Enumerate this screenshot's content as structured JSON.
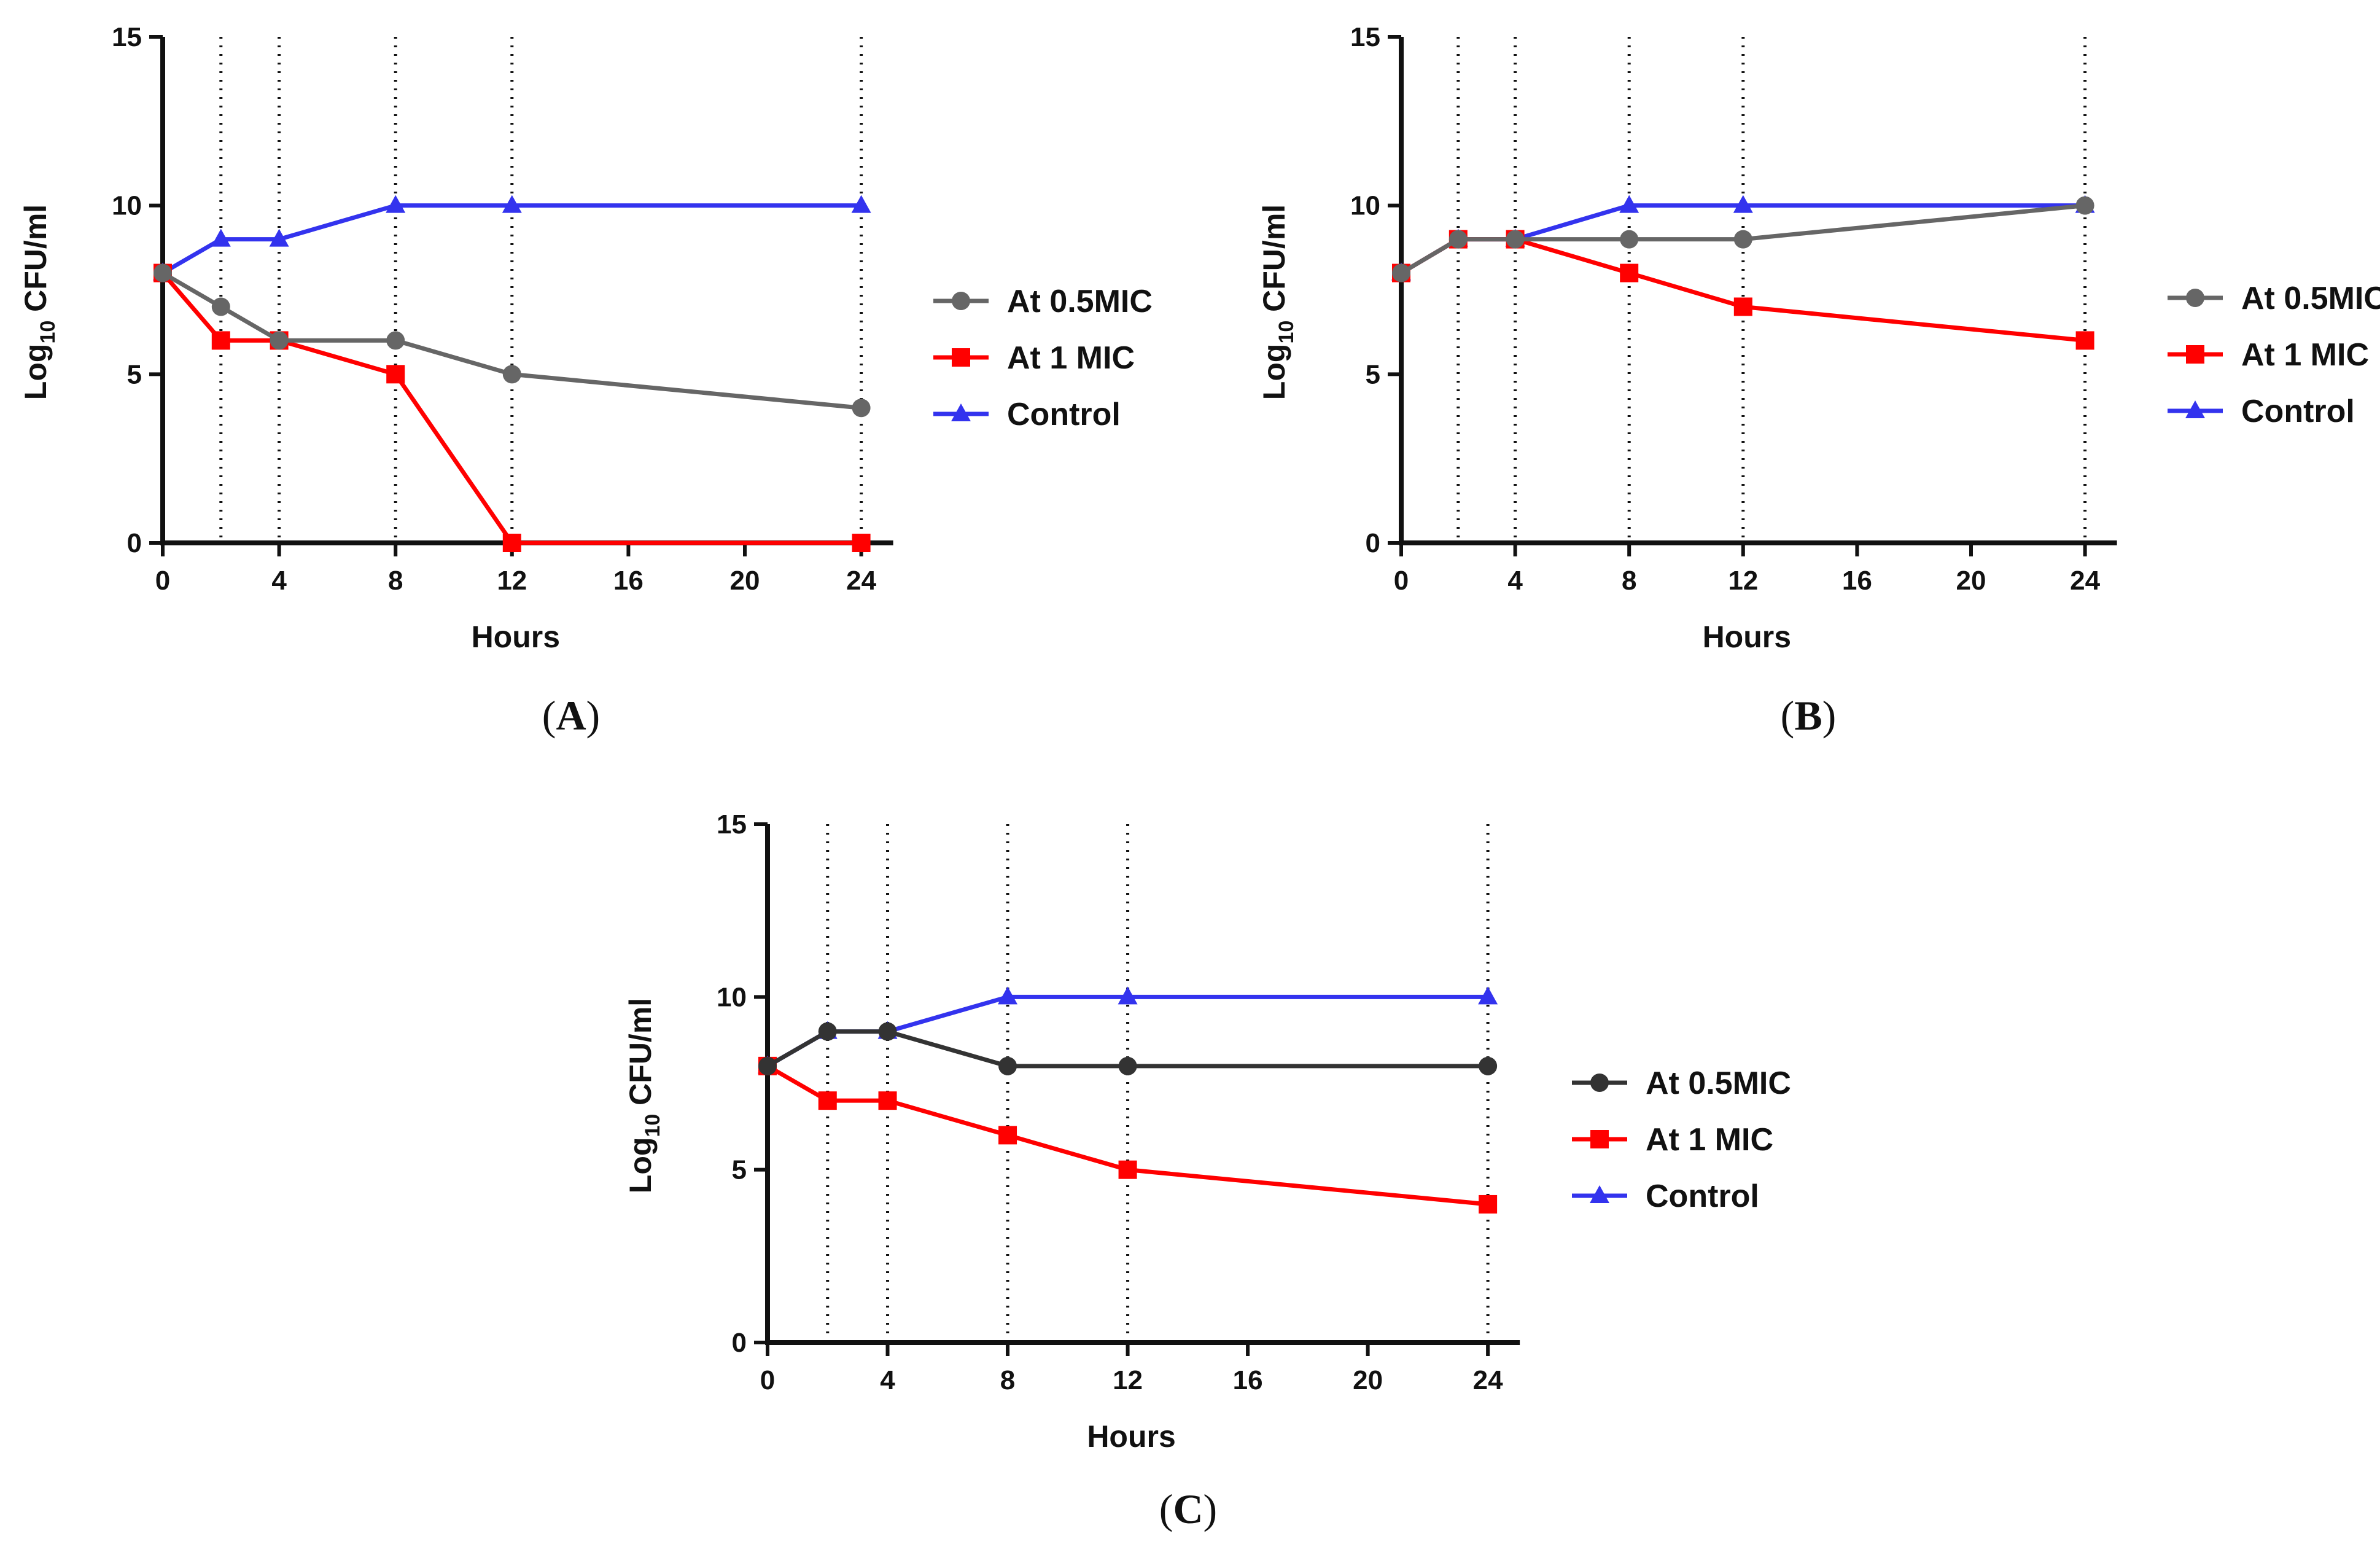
{
  "chart_data": [
    {
      "type": "line",
      "panel_label": "A",
      "xlabel": "Hours",
      "ylabel_base": "Log",
      "ylabel_sub": "10",
      "ylabel_rest": " CFU/ml",
      "xlim": [
        0,
        25
      ],
      "ylim": [
        0,
        15
      ],
      "xticks": [
        0,
        4,
        8,
        12,
        16,
        20,
        24
      ],
      "yticks": [
        0,
        5,
        10,
        15
      ],
      "vlines": [
        2,
        4,
        8,
        12,
        24
      ],
      "series": [
        {
          "name": "At 0.5MIC",
          "color": "#666666",
          "marker": "circle",
          "x": [
            0,
            2,
            4,
            8,
            12,
            24
          ],
          "values": [
            8,
            7,
            6,
            6,
            5,
            4
          ]
        },
        {
          "name": "At 1 MIC",
          "color": "#ff0000",
          "marker": "square",
          "x": [
            0,
            2,
            4,
            8,
            12,
            24
          ],
          "values": [
            8,
            6,
            6,
            5,
            0,
            0
          ]
        },
        {
          "name": "Control",
          "color": "#3333ee",
          "marker": "triangle",
          "x": [
            0,
            2,
            4,
            8,
            12,
            24
          ],
          "values": [
            8,
            9,
            9,
            10,
            10,
            10
          ]
        }
      ]
    },
    {
      "type": "line",
      "panel_label": "B",
      "xlabel": "Hours",
      "ylabel_base": "Log",
      "ylabel_sub": "10",
      "ylabel_rest": " CFU/ml",
      "xlim": [
        0,
        25
      ],
      "ylim": [
        0,
        15
      ],
      "xticks": [
        0,
        4,
        8,
        12,
        16,
        20,
        24
      ],
      "yticks": [
        0,
        5,
        10,
        15
      ],
      "vlines": [
        2,
        4,
        8,
        12,
        24
      ],
      "series": [
        {
          "name": "At 0.5MIC",
          "color": "#666666",
          "marker": "circle",
          "x": [
            0,
            2,
            4,
            8,
            12,
            24
          ],
          "values": [
            8,
            9,
            9,
            9,
            9,
            10
          ]
        },
        {
          "name": "At 1 MIC",
          "color": "#ff0000",
          "marker": "square",
          "x": [
            0,
            2,
            4,
            8,
            12,
            24
          ],
          "values": [
            8,
            9,
            9,
            8,
            7,
            6
          ]
        },
        {
          "name": "Control",
          "color": "#3333ee",
          "marker": "triangle",
          "x": [
            0,
            2,
            4,
            8,
            12,
            24
          ],
          "values": [
            8,
            9,
            9,
            10,
            10,
            10
          ]
        }
      ]
    },
    {
      "type": "line",
      "panel_label": "C",
      "xlabel": "Hours",
      "ylabel_base": "Log",
      "ylabel_sub": "10",
      "ylabel_rest": " CFU/ml",
      "xlim": [
        0,
        25
      ],
      "ylim": [
        0,
        15
      ],
      "xticks": [
        0,
        4,
        8,
        12,
        16,
        20,
        24
      ],
      "yticks": [
        0,
        5,
        10,
        15
      ],
      "vlines": [
        2,
        4,
        8,
        12,
        24
      ],
      "series": [
        {
          "name": "At 0.5MIC",
          "color": "#333333",
          "marker": "circle",
          "x": [
            0,
            2,
            4,
            8,
            12,
            24
          ],
          "values": [
            8,
            9,
            9,
            8,
            8,
            8
          ]
        },
        {
          "name": "At 1 MIC",
          "color": "#ff0000",
          "marker": "square",
          "x": [
            0,
            2,
            4,
            8,
            12,
            24
          ],
          "values": [
            8,
            7,
            7,
            6,
            5,
            4
          ]
        },
        {
          "name": "Control",
          "color": "#3333ee",
          "marker": "triangle",
          "x": [
            0,
            2,
            4,
            8,
            12,
            24
          ],
          "values": [
            8,
            9,
            9,
            10,
            10,
            10
          ]
        }
      ]
    }
  ]
}
